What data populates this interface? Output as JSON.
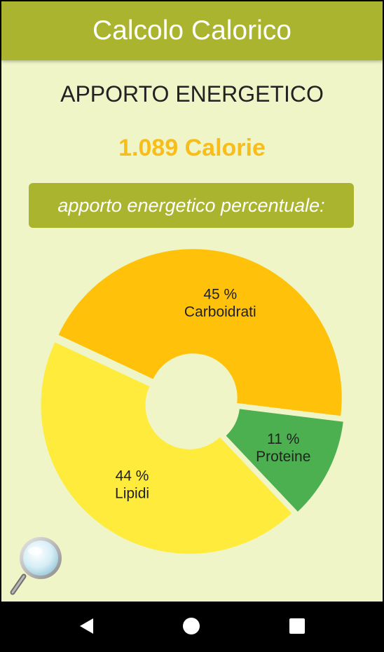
{
  "appbar": {
    "title": "Calcolo Calorico"
  },
  "main": {
    "heading": "APPORTO ENERGETICO",
    "calories": "1.089 Calorie",
    "percent_button": "apporto energetico percentuale:"
  },
  "chart_data": {
    "type": "pie",
    "variant": "donut",
    "categories": [
      "Carboidrati",
      "Proteine",
      "Lipidi"
    ],
    "values": [
      45,
      11,
      44
    ],
    "labels": [
      "45 %",
      "11 %",
      "44 %"
    ],
    "colors": [
      "#FFC10A",
      "#4CAF50",
      "#FFEB3B"
    ],
    "title": "",
    "legend": "none"
  },
  "icons": {
    "zoom": "magnifier-icon",
    "nav_back": "back-triangle-icon",
    "nav_home": "home-circle-icon",
    "nav_recents": "recents-square-icon"
  },
  "colors": {
    "accent": "#AAB42E",
    "background": "#EFF5C6",
    "calories": "#F8BD1A"
  }
}
